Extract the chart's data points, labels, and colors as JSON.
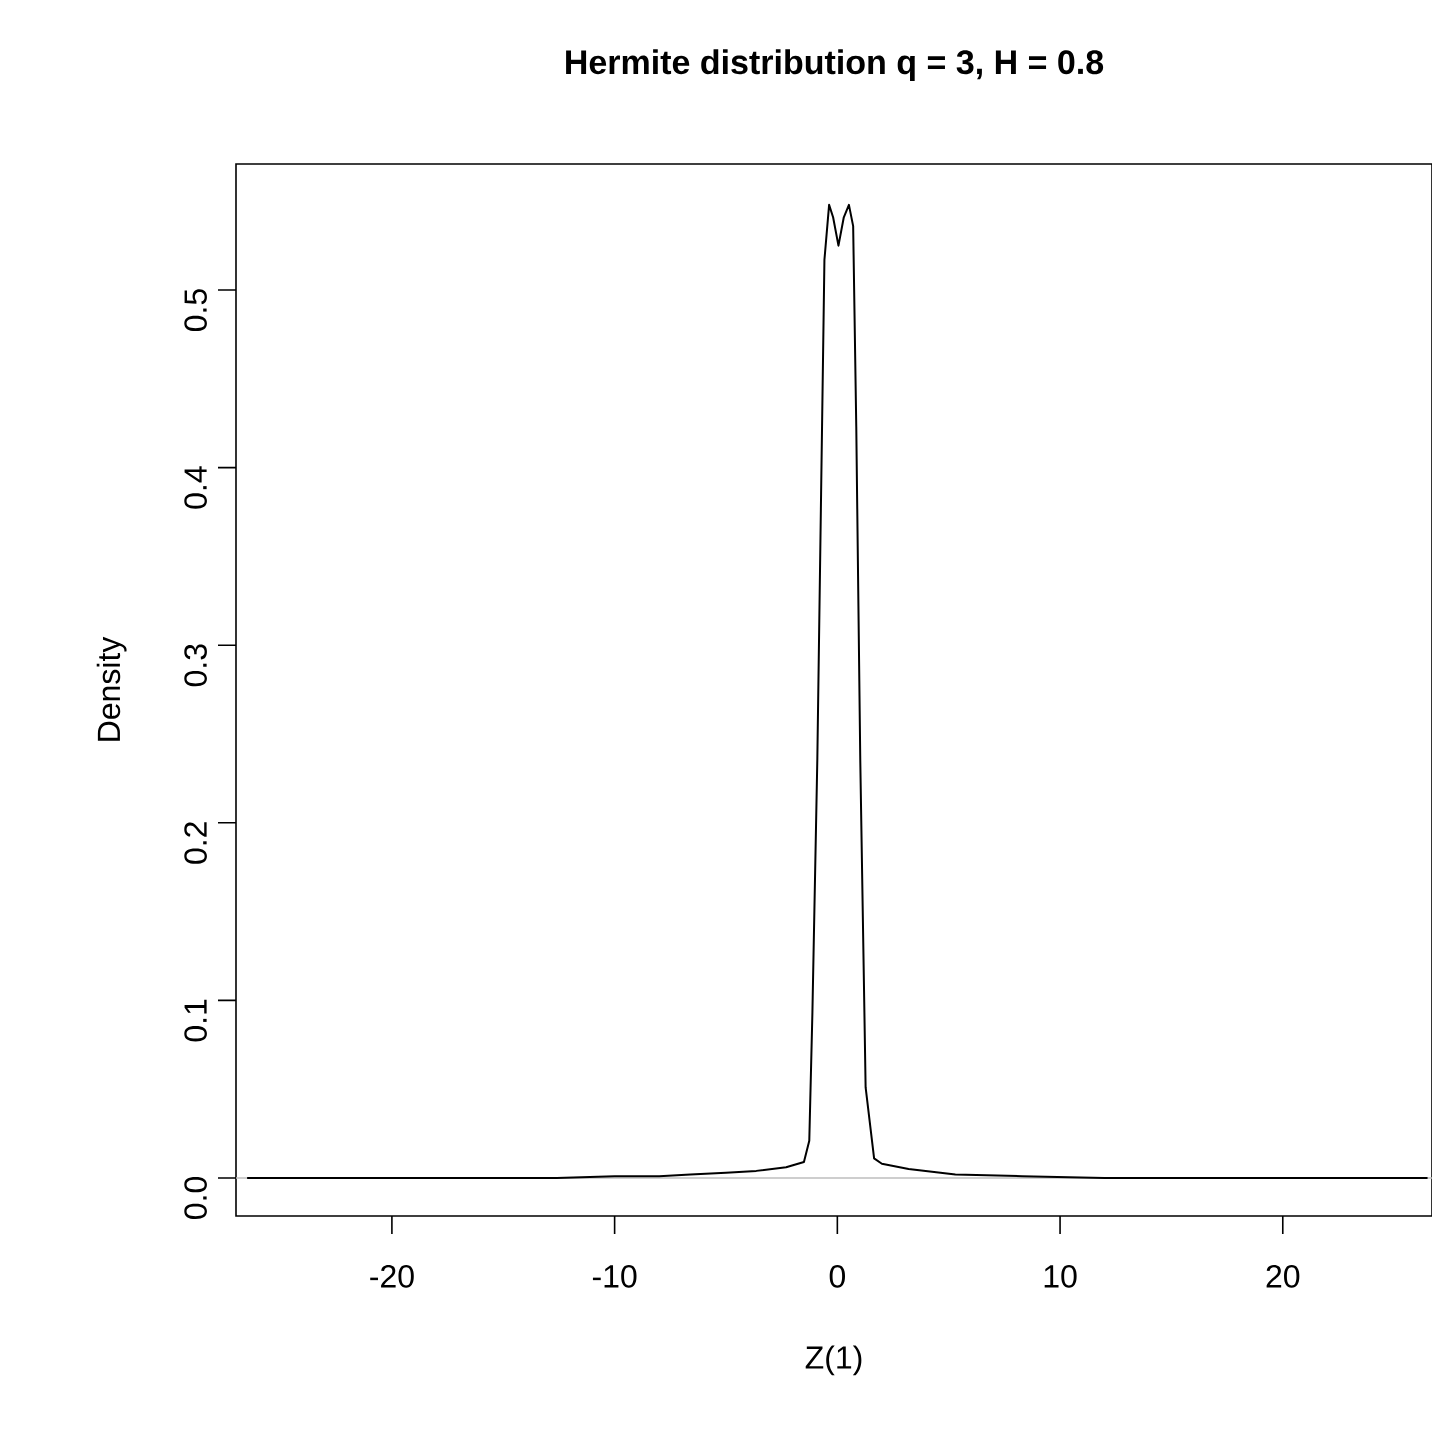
{
  "chart_data": {
    "type": "line",
    "title": "Hermite distribution q = 3, H = 0.8",
    "xlabel": "Z(1)",
    "ylabel": "Density",
    "x": [
      -26.5,
      -20,
      -15,
      -12.6,
      -10,
      -8,
      -6.6,
      -5,
      -3.64,
      -2.3,
      -1.5,
      -1.26,
      -1.12,
      -0.9,
      -0.73,
      -0.58,
      -0.37,
      -0.19,
      0.05,
      0.29,
      0.52,
      0.71,
      0.85,
      1.03,
      1.27,
      1.65,
      2.0,
      3.2,
      5.3,
      8.3,
      12,
      16,
      20,
      26.5
    ],
    "series": [
      {
        "color": "#000000",
        "values": [
          0,
          0,
          0,
          0,
          0.001,
          0.001,
          0.002,
          0.003,
          0.004,
          0.006,
          0.009,
          0.021,
          0.093,
          0.235,
          0.385,
          0.517,
          0.548,
          0.541,
          0.525,
          0.541,
          0.548,
          0.536,
          0.423,
          0.235,
          0.051,
          0.011,
          0.008,
          0.005,
          0.002,
          0.001,
          0,
          0,
          0,
          0
        ]
      }
    ],
    "xlim": [
      -27,
      26.7
    ],
    "ylim": [
      -0.0214,
      0.571
    ],
    "xticks": [
      -20,
      -10,
      0,
      10,
      20
    ],
    "yticks": [
      {
        "value": 0,
        "label": "0.0"
      },
      0.1,
      0.2,
      0.3,
      0.4,
      0.5
    ],
    "ref_lines": [
      {
        "axis": "y",
        "value": 0,
        "color": "#bebebe"
      }
    ],
    "marker": "none",
    "line_style": "solid"
  }
}
